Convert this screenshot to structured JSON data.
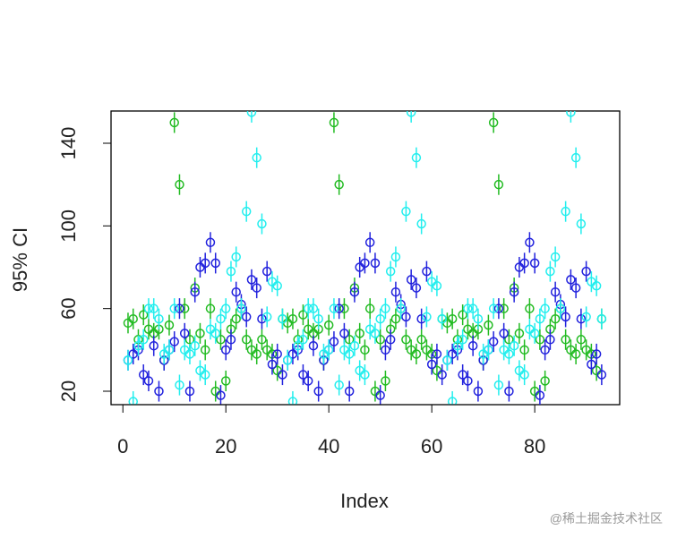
{
  "chart_data": {
    "type": "scatter",
    "y_label": "95% CI",
    "x_label": "Index",
    "xlim": [
      -2.3,
      96.5
    ],
    "ylim": [
      13.5,
      155.6
    ],
    "xticks": [
      0,
      20,
      40,
      60,
      80
    ],
    "yticks": [
      20,
      60,
      100,
      140
    ],
    "x": [
      1,
      2,
      3,
      4,
      5,
      6,
      7,
      8,
      9,
      10,
      11,
      12,
      13,
      14,
      15,
      16,
      17,
      18,
      19,
      20,
      21,
      22,
      23,
      24,
      25,
      26,
      27,
      28,
      29,
      30,
      31,
      32,
      33,
      34,
      35,
      36,
      37,
      38,
      39,
      40,
      41,
      42,
      43,
      44,
      45,
      46,
      47,
      48,
      49,
      50,
      51,
      52,
      53,
      54,
      55,
      56,
      57,
      58,
      59,
      60,
      61,
      62,
      63,
      64,
      65,
      66,
      67,
      68,
      69,
      70,
      71,
      72,
      73,
      74,
      75,
      76,
      77,
      78,
      79,
      80,
      81,
      82,
      83,
      84,
      85,
      86,
      87,
      88,
      89,
      90,
      91,
      92,
      93
    ],
    "series": [
      {
        "color": "#22bb22",
        "error": 5,
        "values": [
          53,
          55,
          45,
          57,
          50,
          48,
          50,
          35,
          52,
          150,
          120,
          60,
          45,
          70,
          48,
          40,
          60,
          20,
          45,
          25,
          50,
          55,
          60,
          45,
          40,
          38,
          45,
          40,
          38,
          30,
          55,
          53,
          55,
          45,
          57,
          50,
          48,
          50,
          35,
          52,
          150,
          120,
          60,
          45,
          70,
          48,
          40,
          60,
          20,
          45,
          25,
          50,
          55,
          60,
          45,
          40,
          38,
          45,
          40,
          38,
          30,
          55,
          53,
          55,
          45,
          57,
          50,
          48,
          50,
          35,
          52,
          150,
          120,
          60,
          45,
          70,
          48,
          40,
          60,
          20,
          45,
          25,
          50,
          55,
          60,
          45,
          40,
          38,
          45,
          40,
          38,
          30,
          55
        ]
      },
      {
        "color": "#2222dd",
        "error": 5,
        "values": [
          35,
          38,
          40,
          28,
          25,
          42,
          20,
          35,
          40,
          44,
          60,
          48,
          20,
          68,
          80,
          82,
          92,
          82,
          18,
          40,
          45,
          68,
          62,
          56,
          74,
          70,
          55,
          78,
          33,
          38,
          28,
          35,
          38,
          40,
          28,
          25,
          42,
          20,
          35,
          40,
          44,
          60,
          48,
          20,
          68,
          80,
          82,
          92,
          82,
          18,
          40,
          45,
          68,
          62,
          56,
          74,
          70,
          55,
          78,
          33,
          38,
          28,
          35,
          38,
          40,
          28,
          25,
          42,
          20,
          35,
          40,
          44,
          60,
          48,
          20,
          68,
          80,
          82,
          92,
          82,
          18,
          40,
          45,
          68,
          62,
          56,
          74,
          70,
          55,
          78,
          33,
          38,
          28
        ]
      },
      {
        "color": "#22eeee",
        "error": 5,
        "values": [
          35,
          15,
          42,
          45,
          60,
          60,
          55,
          38,
          40,
          60,
          23,
          40,
          38,
          42,
          30,
          28,
          50,
          48,
          55,
          60,
          78,
          85,
          60,
          107,
          155,
          133,
          101,
          56,
          73,
          71,
          55,
          35,
          15,
          42,
          45,
          60,
          60,
          55,
          38,
          40,
          60,
          23,
          40,
          38,
          42,
          30,
          28,
          50,
          48,
          55,
          60,
          78,
          85,
          60,
          107,
          155,
          133,
          101,
          56,
          73,
          71,
          55,
          35,
          15,
          42,
          45,
          60,
          60,
          55,
          38,
          40,
          60,
          23,
          40,
          38,
          42,
          30,
          28,
          50,
          48,
          55,
          60,
          78,
          85,
          60,
          107,
          155,
          133,
          101,
          56,
          73,
          71,
          55
        ]
      }
    ]
  },
  "watermark": "@稀土掘金技术社区"
}
